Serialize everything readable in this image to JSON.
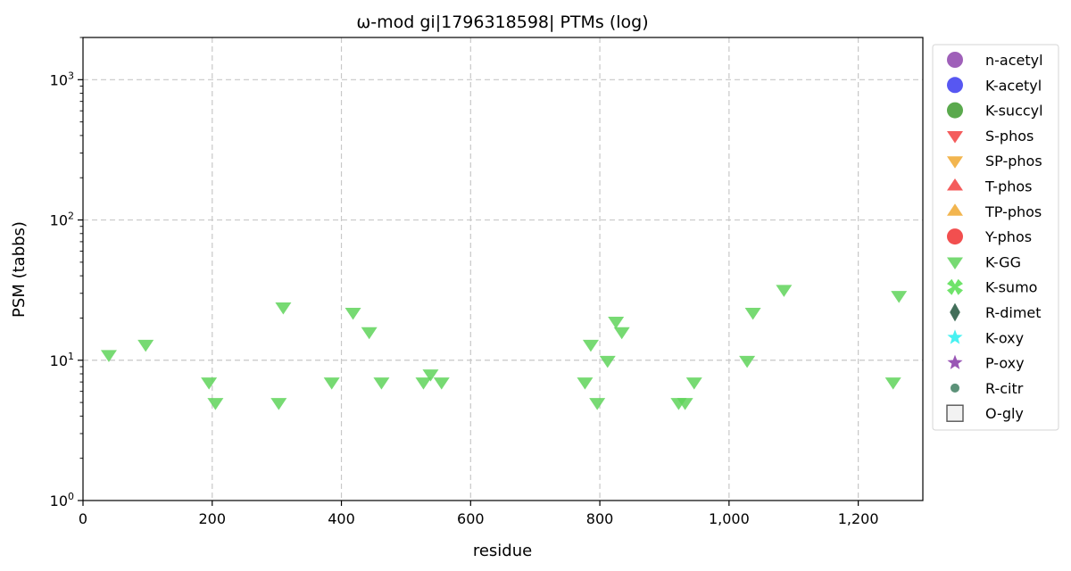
{
  "chart_data": {
    "type": "scatter",
    "title": "ω-mod gi|1796318598| PTMs (log)",
    "xlabel": "residue",
    "ylabel": "PSM (tabbs)",
    "xlim": [
      0,
      1300
    ],
    "ylim": [
      1,
      2000
    ],
    "yscale": "log",
    "x_ticks": [
      0,
      200,
      400,
      600,
      800,
      1000,
      1200
    ],
    "x_tick_labels": [
      "0",
      "200",
      "400",
      "600",
      "800",
      "1,000",
      "1,200"
    ],
    "y_ticks": [
      1,
      10,
      100,
      1000
    ],
    "y_tick_labels": [
      {
        "base": "10",
        "exp": "0"
      },
      {
        "base": "10",
        "exp": "1"
      },
      {
        "base": "10",
        "exp": "2"
      },
      {
        "base": "10",
        "exp": "3"
      }
    ],
    "grid": true,
    "legend_position": "outside-right",
    "legend": [
      {
        "name": "n-acetyl",
        "marker": "circle",
        "color": "#8e44ad"
      },
      {
        "name": "K-acetyl",
        "marker": "circle",
        "color": "#3a3af0"
      },
      {
        "name": "K-succyl",
        "marker": "circle",
        "color": "#3d9a2e"
      },
      {
        "name": "S-phos",
        "marker": "triangle-down",
        "color": "#f24040"
      },
      {
        "name": "SP-phos",
        "marker": "triangle-down",
        "color": "#f0a830"
      },
      {
        "name": "T-phos",
        "marker": "triangle-up",
        "color": "#f24040"
      },
      {
        "name": "TP-phos",
        "marker": "triangle-up",
        "color": "#f0a830"
      },
      {
        "name": "Y-phos",
        "marker": "circle",
        "color": "#f03030"
      },
      {
        "name": "K-GG",
        "marker": "triangle-down",
        "color": "#5fd35a"
      },
      {
        "name": "K-sumo",
        "marker": "x",
        "color": "#5fe05a"
      },
      {
        "name": "R-dimet",
        "marker": "diamond",
        "color": "#2f5f48"
      },
      {
        "name": "K-oxy",
        "marker": "star",
        "color": "#33f0f0"
      },
      {
        "name": "P-oxy",
        "marker": "star",
        "color": "#8e44ad"
      },
      {
        "name": "R-citr",
        "marker": "small-circle",
        "color": "#3f7f62"
      },
      {
        "name": "O-gly",
        "marker": "square",
        "color": "#f2f2f2"
      }
    ],
    "series": [
      {
        "name": "K-GG",
        "marker": "triangle-down",
        "color": "#5fd35a",
        "x": [
          40,
          97,
          195,
          205,
          303,
          310,
          385,
          418,
          443,
          462,
          527,
          538,
          555,
          777,
          786,
          796,
          812,
          825,
          834,
          922,
          932,
          946,
          1028,
          1037,
          1085,
          1254,
          1263
        ],
        "y": [
          11,
          13,
          7,
          5,
          5,
          24,
          7,
          22,
          16,
          7,
          7,
          8,
          7,
          7,
          13,
          5,
          10,
          19,
          16,
          5,
          5,
          7,
          10,
          22,
          32,
          7,
          29
        ]
      }
    ]
  }
}
